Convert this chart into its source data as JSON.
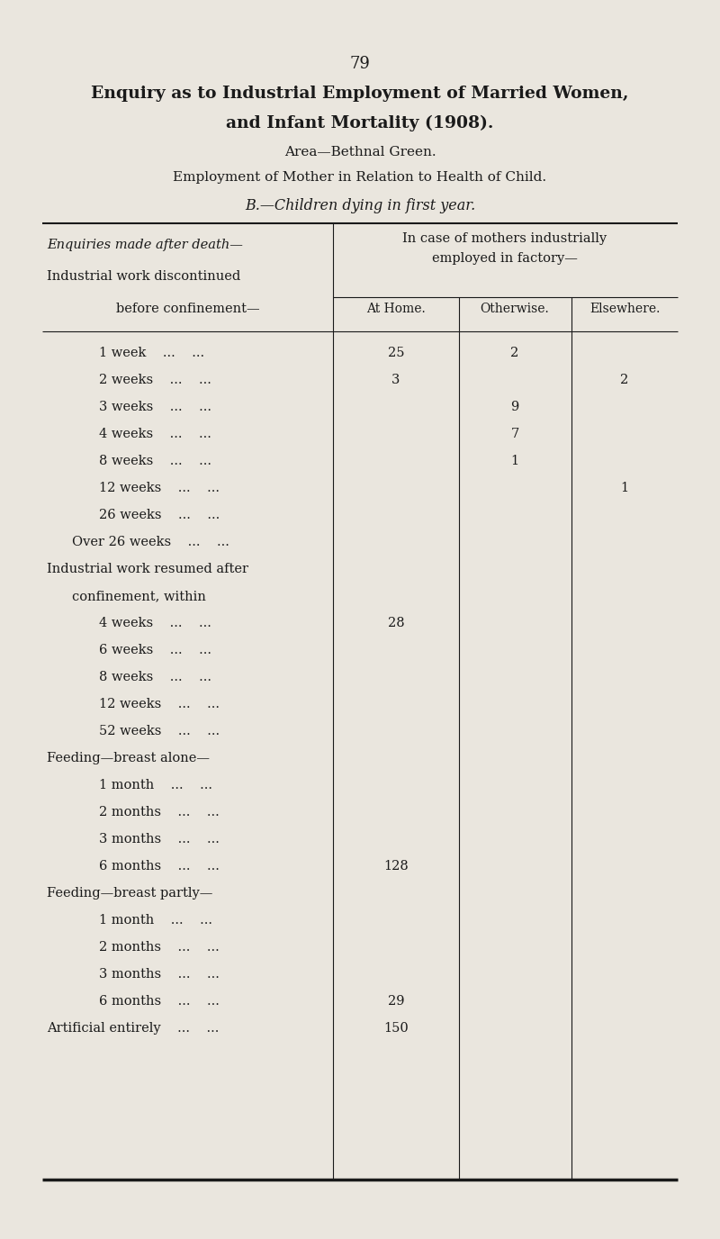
{
  "page_number": "79",
  "title_line1": "Enquiry as to Industrial Employment of Married Women,",
  "title_line2": "and Infant Mortality (1908).",
  "subtitle1": "Area—Bethnal Green.",
  "subtitle2": "Employment of Mother in Relation to Health of Child.",
  "subtitle3": "B.—Children dying in first year.",
  "col_header_main": "In case of mothers industrially\nemployed in factory—",
  "col_header_left": "Enquiries made after death—",
  "col1": "At Home.",
  "col2": "Otherwise.",
  "col3": "Elsewhere.",
  "rows": [
    {
      "label": "Industrial work discontinued",
      "indent": 0,
      "at_home": "",
      "otherwise": "",
      "elsewhere": ""
    },
    {
      "label": "before confinement—",
      "indent": 1,
      "at_home": "",
      "otherwise": "",
      "elsewhere": ""
    },
    {
      "label": "1 week    ...    ...",
      "indent": 2,
      "at_home": "25",
      "otherwise": "2",
      "elsewhere": ""
    },
    {
      "label": "2 weeks    ...    ...",
      "indent": 2,
      "at_home": "3",
      "otherwise": "",
      "elsewhere": "2"
    },
    {
      "label": "3 weeks    ...    ...",
      "indent": 2,
      "at_home": "",
      "otherwise": "9",
      "elsewhere": ""
    },
    {
      "label": "4 weeks    ...    ...",
      "indent": 2,
      "at_home": "",
      "otherwise": "7",
      "elsewhere": ""
    },
    {
      "label": "8 weeks    ...    ...",
      "indent": 2,
      "at_home": "",
      "otherwise": "1",
      "elsewhere": ""
    },
    {
      "label": "12 weeks    ...    ...",
      "indent": 2,
      "at_home": "",
      "otherwise": "",
      "elsewhere": "1"
    },
    {
      "label": "26 weeks    ...    ...",
      "indent": 2,
      "at_home": "",
      "otherwise": "",
      "elsewhere": ""
    },
    {
      "label": "Over 26 weeks    ...    ...",
      "indent": 1,
      "at_home": "",
      "otherwise": "",
      "elsewhere": ""
    },
    {
      "label": "Industrial work resumed after",
      "indent": 0,
      "at_home": "",
      "otherwise": "",
      "elsewhere": ""
    },
    {
      "label": "confinement, within",
      "indent": 1,
      "at_home": "",
      "otherwise": "",
      "elsewhere": ""
    },
    {
      "label": "4 weeks    ...    ...",
      "indent": 2,
      "at_home": "28",
      "otherwise": "",
      "elsewhere": ""
    },
    {
      "label": "6 weeks    ...    ...",
      "indent": 2,
      "at_home": "",
      "otherwise": "",
      "elsewhere": ""
    },
    {
      "label": "8 weeks    ...    ...",
      "indent": 2,
      "at_home": "",
      "otherwise": "",
      "elsewhere": ""
    },
    {
      "label": "12 weeks    ...    ...",
      "indent": 2,
      "at_home": "",
      "otherwise": "",
      "elsewhere": ""
    },
    {
      "label": "52 weeks    ...    ...",
      "indent": 2,
      "at_home": "",
      "otherwise": "",
      "elsewhere": ""
    },
    {
      "label": "Feeding—breast alone—",
      "indent": 0,
      "at_home": "",
      "otherwise": "",
      "elsewhere": ""
    },
    {
      "label": "1 month    ...    ...",
      "indent": 2,
      "at_home": "",
      "otherwise": "",
      "elsewhere": ""
    },
    {
      "label": "2 months    ...    ...",
      "indent": 2,
      "at_home": "",
      "otherwise": "",
      "elsewhere": ""
    },
    {
      "label": "3 months    ...    ...",
      "indent": 2,
      "at_home": "",
      "otherwise": "",
      "elsewhere": ""
    },
    {
      "label": "6 months    ...    ...",
      "indent": 2,
      "at_home": "128",
      "otherwise": "",
      "elsewhere": ""
    },
    {
      "label": "Feeding—breast partly—",
      "indent": 0,
      "at_home": "",
      "otherwise": "",
      "elsewhere": ""
    },
    {
      "label": "1 month    ...    ...",
      "indent": 2,
      "at_home": "",
      "otherwise": "",
      "elsewhere": ""
    },
    {
      "label": "2 months    ...    ...",
      "indent": 2,
      "at_home": "",
      "otherwise": "",
      "elsewhere": ""
    },
    {
      "label": "3 months    ...    ...",
      "indent": 2,
      "at_home": "",
      "otherwise": "",
      "elsewhere": ""
    },
    {
      "label": "6 months    ...    ...",
      "indent": 2,
      "at_home": "29",
      "otherwise": "",
      "elsewhere": ""
    },
    {
      "label": "Artificial entirely    ...    ...",
      "indent": 0,
      "at_home": "150",
      "otherwise": "",
      "elsewhere": ""
    }
  ],
  "bg_color": "#eae6de",
  "text_color": "#1a1a1a",
  "line_color": "#1a1a1a",
  "fig_width": 8.0,
  "fig_height": 13.76,
  "dpi": 100
}
